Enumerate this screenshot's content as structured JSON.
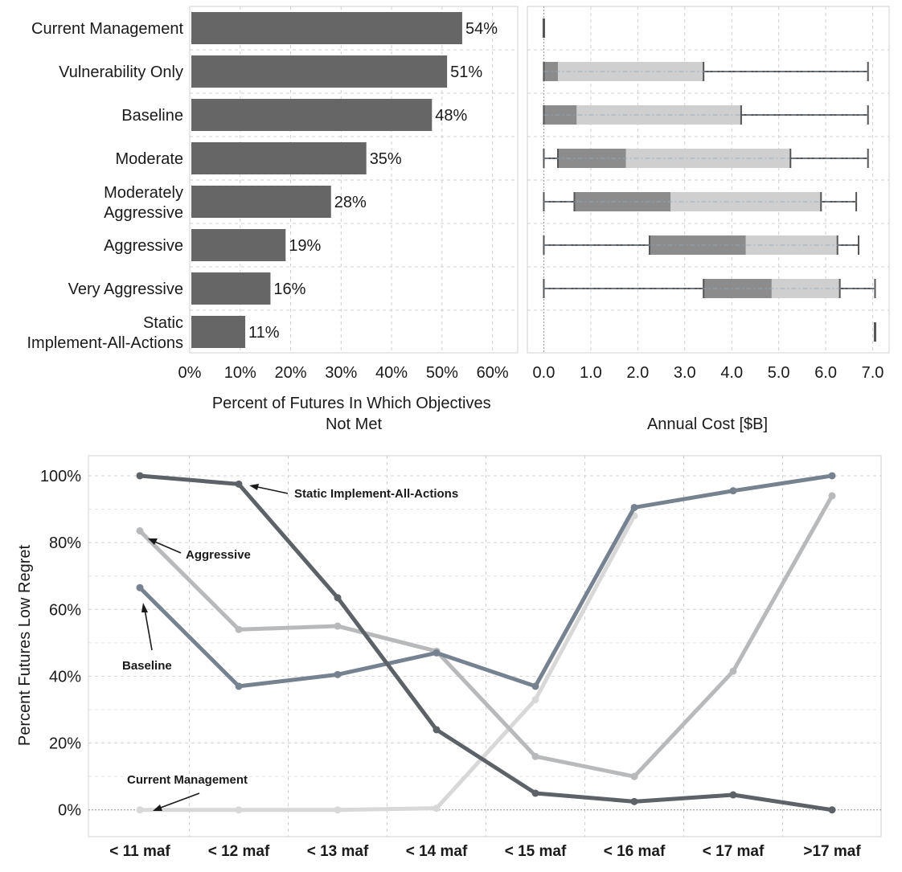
{
  "chart_data": [
    {
      "type": "bar",
      "orientation": "horizontal",
      "categories": [
        "Current Management",
        "Vulnerability Only",
        "Baseline",
        "Moderate",
        "Moderately Aggressive",
        "Aggressive",
        "Very Aggressive",
        "Static Implement-All-Actions"
      ],
      "category_lines": [
        [
          "Current Management"
        ],
        [
          "Vulnerability Only"
        ],
        [
          "Baseline"
        ],
        [
          "Moderate"
        ],
        [
          "Moderately",
          "Aggressive"
        ],
        [
          "Aggressive"
        ],
        [
          "Very Aggressive"
        ],
        [
          "Static",
          "Implement-All-Actions"
        ]
      ],
      "values": [
        54,
        51,
        48,
        35,
        28,
        19,
        16,
        11
      ],
      "data_labels": [
        "54%",
        "51%",
        "48%",
        "35%",
        "28%",
        "19%",
        "16%",
        "11%"
      ],
      "xlabel_lines": [
        "Percent of Futures In Which Objectives",
        "Not Met"
      ],
      "xticks": [
        "0%",
        "10%",
        "20%",
        "30%",
        "40%",
        "50%",
        "60%"
      ],
      "xlim": [
        0,
        65
      ],
      "grid": true,
      "bar_color": "#666666"
    },
    {
      "type": "box",
      "orientation": "horizontal",
      "categories": [
        "Current Management",
        "Vulnerability Only",
        "Baseline",
        "Moderate",
        "Moderately Aggressive",
        "Aggressive",
        "Very Aggressive",
        "Static Implement-All-Actions"
      ],
      "boxes": [
        {
          "min": 0.0,
          "q1": 0.0,
          "median": 0.0,
          "q3": 0.0,
          "max": 0.0
        },
        {
          "min": 0.0,
          "q1": 0.0,
          "median": 0.3,
          "q3": 3.4,
          "max": 6.9
        },
        {
          "min": 0.0,
          "q1": 0.0,
          "median": 0.7,
          "q3": 4.2,
          "max": 6.9
        },
        {
          "min": 0.0,
          "q1": 0.3,
          "median": 1.75,
          "q3": 5.25,
          "max": 6.9
        },
        {
          "min": 0.0,
          "q1": 0.65,
          "median": 2.7,
          "q3": 5.9,
          "max": 6.65
        },
        {
          "min": 0.0,
          "q1": 2.25,
          "median": 4.3,
          "q3": 6.25,
          "max": 6.7
        },
        {
          "min": 0.0,
          "q1": 3.4,
          "median": 4.85,
          "q3": 6.3,
          "max": 7.05
        },
        {
          "min": 7.05,
          "q1": 7.05,
          "median": 7.05,
          "q3": 7.05,
          "max": 7.05
        }
      ],
      "xlabel": "Annual Cost [$B]",
      "xticks": [
        "0.0",
        "1.0",
        "2.0",
        "3.0",
        "4.0",
        "5.0",
        "6.0",
        "7.0"
      ],
      "xlim": [
        -0.35,
        7.35
      ],
      "grid": true,
      "colors": {
        "lower_box": "#8c8c8c",
        "upper_box": "#cfcfcf",
        "whisker": "#555555"
      }
    },
    {
      "type": "line",
      "categories": [
        "< 11 maf",
        "< 12 maf",
        "< 13 maf",
        "< 14 maf",
        "< 15 maf",
        "< 16 maf",
        "< 17 maf",
        ">17 maf"
      ],
      "series": [
        {
          "name": "Static Implement-All-Actions",
          "values": [
            100,
            97.5,
            63.5,
            24,
            5,
            2.5,
            4.5,
            0
          ],
          "color": "#5d6168"
        },
        {
          "name": "Aggressive",
          "values": [
            83.5,
            54,
            55,
            47.5,
            16,
            10,
            41.5,
            94
          ],
          "color": "#b7b9bb"
        },
        {
          "name": "Baseline",
          "values": [
            66.5,
            37,
            40.5,
            47,
            37,
            90.5,
            95.5,
            100
          ],
          "color": "#778290"
        },
        {
          "name": "Current Management",
          "values": [
            0,
            0,
            0,
            0.5,
            33,
            88,
            null,
            null
          ],
          "color": "#d8d8d8"
        }
      ],
      "ylabel": "Percent Futures Low Regret",
      "yticks": [
        "0%",
        "20%",
        "40%",
        "60%",
        "80%",
        "100%"
      ],
      "ylim": [
        -8,
        106
      ],
      "grid": true,
      "annotations": [
        "Static Implement-All-Actions",
        "Aggressive",
        "Baseline",
        "Current Management"
      ]
    }
  ]
}
